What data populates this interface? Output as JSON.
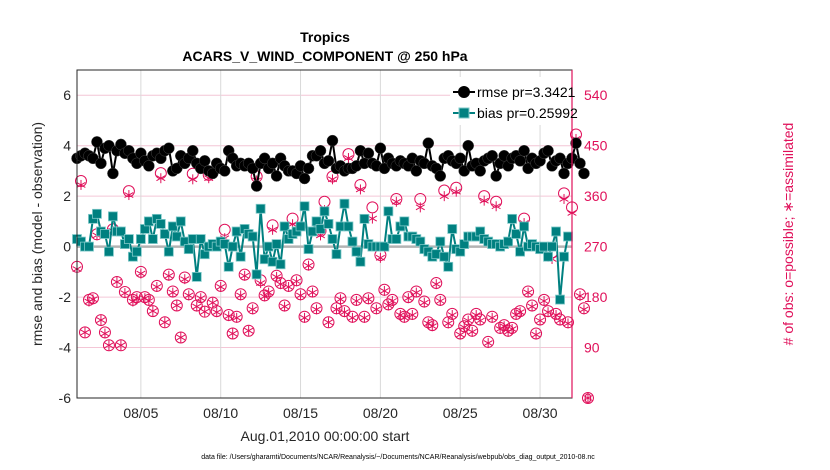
{
  "chart_data": {
    "type": "line",
    "title": "Tropics",
    "subtitle": "ACARS_V_WIND_COMPONENT @ 250 hPa",
    "xlabel": "Aug.01,2010 00:00:00 start",
    "ylabel": "rmse and bias (model - observation)",
    "ylabel_right": "# of obs: o=possible; ∗=assimilated",
    "footer": "data file: /Users/gharamti/Documents/NCAR/Reanalysis/~/Documents/NCAR/Reanalysis/webpub/obs_diag_output_2010-08.nc",
    "x_unit": "days since Aug.01,2010 00:00:00",
    "x_step_days": 0.25,
    "xlim": [
      0,
      31
    ],
    "ylim": [
      -6,
      7
    ],
    "ylim_right": [
      0,
      585
    ],
    "x_ticks": [
      {
        "day": 4,
        "label": "08/05"
      },
      {
        "day": 9,
        "label": "08/10"
      },
      {
        "day": 14,
        "label": "08/15"
      },
      {
        "day": 19,
        "label": "08/20"
      },
      {
        "day": 24,
        "label": "08/25"
      },
      {
        "day": 29,
        "label": "08/30"
      }
    ],
    "y_ticks": [
      "-6",
      "-4",
      "-2",
      "0",
      "2",
      "4",
      "6"
    ],
    "y_ticks_right": [
      "0",
      "90",
      "180",
      "270",
      "360",
      "450",
      "540"
    ],
    "legend_position": "top-right",
    "colors": {
      "rmse": "#000000",
      "bias": "#008080",
      "obs": "#e0105a",
      "grid_h": "#f4c6d6",
      "grid_v": "#d9d9d9",
      "zero": "#b3b3b3"
    },
    "series": [
      {
        "name": "rmse pr=3.3421",
        "values": [
          3.5,
          3.6,
          3.7,
          3.6,
          3.5,
          4.15,
          3.3,
          3.9,
          4.0,
          2.9,
          3.8,
          4.05,
          3.7,
          3.8,
          3.5,
          3.3,
          3.7,
          3.4,
          3.2,
          3.6,
          3.7,
          3.5,
          3.8,
          3.9,
          3.0,
          3.1,
          3.6,
          3.3,
          3.5,
          3.8,
          3.3,
          3.1,
          3.4,
          3.0,
          2.9,
          3.3,
          3.1,
          3.0,
          3.8,
          3.5,
          3.2,
          3.3,
          3.2,
          3.3,
          3.1,
          2.4,
          3.3,
          3.5,
          3.1,
          3.3,
          2.8,
          3.5,
          3.2,
          3.0,
          3.0,
          2.9,
          3.2,
          2.7,
          3.1,
          3.6,
          3.6,
          3.8,
          3.3,
          3.4,
          4.2,
          3.1,
          3.2,
          3.0,
          3.1,
          3.1,
          3.2,
          3.8,
          3.3,
          3.7,
          3.3,
          3.2,
          3.9,
          3.1,
          3.5,
          3.3,
          3.2,
          3.4,
          3.3,
          3.2,
          3.5,
          3.0,
          3.4,
          3.3,
          4.1,
          3.2,
          3.1,
          2.8,
          3.5,
          3.6,
          3.4,
          3.3,
          3.5,
          3.0,
          4.0,
          3.2,
          3.3,
          3.0,
          3.4,
          3.5,
          3.6,
          2.8,
          3.3,
          3.6,
          3.2,
          3.5,
          3.6,
          3.4,
          3.8,
          3.1,
          3.5,
          3.3,
          3.4,
          3.7,
          3.8,
          3.2,
          3.4,
          3.5,
          2.9,
          3.3,
          3.5,
          4.1,
          3.3,
          2.9
        ]
      },
      {
        "name": "bias pr=0.25992",
        "values": [
          0.3,
          0.2,
          0,
          0,
          1.1,
          1.3,
          0.6,
          0.5,
          -0.2,
          1.2,
          0.6,
          0.6,
          0.1,
          0.3,
          -0.4,
          -0.2,
          0.3,
          0.7,
          1.0,
          0.3,
          1.1,
          0.9,
          0.5,
          -0.2,
          0.8,
          0.4,
          1.0,
          0.2,
          -0.1,
          0.3,
          -1.2,
          0.3,
          -0.3,
          0.0,
          0.1,
          0.0,
          0.2,
          0.1,
          -0.8,
          0.0,
          0.6,
          -0.4,
          0.7,
          0.5,
          0.4,
          -1.1,
          1.5,
          -0.5,
          0.0,
          -0.6,
          0.1,
          -0.7,
          0.8,
          0.3,
          0.5,
          0.6,
          0.8,
          1.6,
          -0.1,
          0.6,
          1.0,
          0.7,
          1.4,
          0.9,
          0.3,
          -0.3,
          0.8,
          1.7,
          0.8,
          0.2,
          -0.2,
          -0.6,
          1.1,
          0.1,
          0,
          0,
          0,
          0,
          1.4,
          0.3,
          0.3,
          0.8,
          1.0,
          0.4,
          0.4,
          0.3,
          0.2,
          -0.1,
          -0.2,
          -0.4,
          -0.3,
          0.2,
          -0.4,
          -0.8,
          0.7,
          -0.1,
          -0.2,
          0.1,
          0.4,
          0.4,
          0.4,
          0.6,
          0.3,
          0.2,
          0.1,
          0.1,
          0.0,
          0.1,
          0.2,
          1.1,
          0.5,
          -0.2,
          0.8,
          0.0,
          0.1,
          0.0,
          -0.1,
          0.0,
          -0.4,
          0.0,
          0.6,
          -2.1,
          -0.4,
          0.4
        ]
      },
      {
        "name": "obs possible",
        "axis": "right",
        "values": [
          234,
          387,
          117,
          175,
          178,
          292,
          139,
          117,
          94,
          301,
          207,
          94,
          189,
          369,
          175,
          180,
          225,
          180,
          175,
          155,
          200,
          401,
          135,
          220,
          190,
          165,
          108,
          215,
          185,
          400,
          165,
          180,
          154,
          398,
          170,
          155,
          200,
          300,
          148,
          115,
          145,
          185,
          220,
          120,
          160,
          395,
          210,
          183,
          190,
          308,
          218,
          205,
          165,
          200,
          320,
          210,
          185,
          145,
          238,
          190,
          160,
          298,
          350,
          135,
          395,
          160,
          178,
          155,
          435,
          145,
          175,
          380,
          145,
          178,
          340,
          160,
          255,
          193,
          167,
          175,
          355,
          150,
          145,
          180,
          150,
          190,
          355,
          172,
          135,
          130,
          205,
          175,
          370,
          135,
          150,
          375,
          115,
          128,
          140,
          120,
          150,
          140,
          360,
          100,
          145,
          350,
          125,
          130,
          120,
          125,
          150,
          155,
          320,
          190,
          165,
          115,
          140,
          175,
          155,
          260,
          150,
          140,
          365,
          135,
          340,
          470,
          185,
          160,
          0
        ]
      },
      {
        "name": "obs assimilated",
        "axis": "right",
        "values": [
          230,
          380,
          117,
          172,
          176,
          290,
          139,
          115,
          94,
          298,
          207,
          94,
          187,
          362,
          172,
          178,
          222,
          178,
          173,
          155,
          198,
          392,
          135,
          218,
          188,
          165,
          108,
          212,
          183,
          390,
          163,
          178,
          154,
          392,
          170,
          153,
          198,
          285,
          146,
          115,
          143,
          183,
          218,
          120,
          158,
          388,
          205,
          181,
          188,
          300,
          216,
          203,
          163,
          198,
          310,
          208,
          183,
          143,
          236,
          188,
          158,
          290,
          335,
          135,
          390,
          158,
          176,
          153,
          428,
          143,
          173,
          372,
          143,
          176,
          320,
          158,
          250,
          191,
          165,
          173,
          350,
          148,
          143,
          178,
          148,
          188,
          340,
          170,
          133,
          128,
          203,
          173,
          360,
          133,
          148,
          368,
          113,
          126,
          138,
          118,
          148,
          138,
          352,
          98,
          143,
          342,
          123,
          128,
          118,
          123,
          148,
          153,
          312,
          188,
          163,
          113,
          138,
          173,
          153,
          248,
          148,
          138,
          355,
          133,
          330,
          462,
          182,
          158,
          0
        ]
      }
    ]
  }
}
